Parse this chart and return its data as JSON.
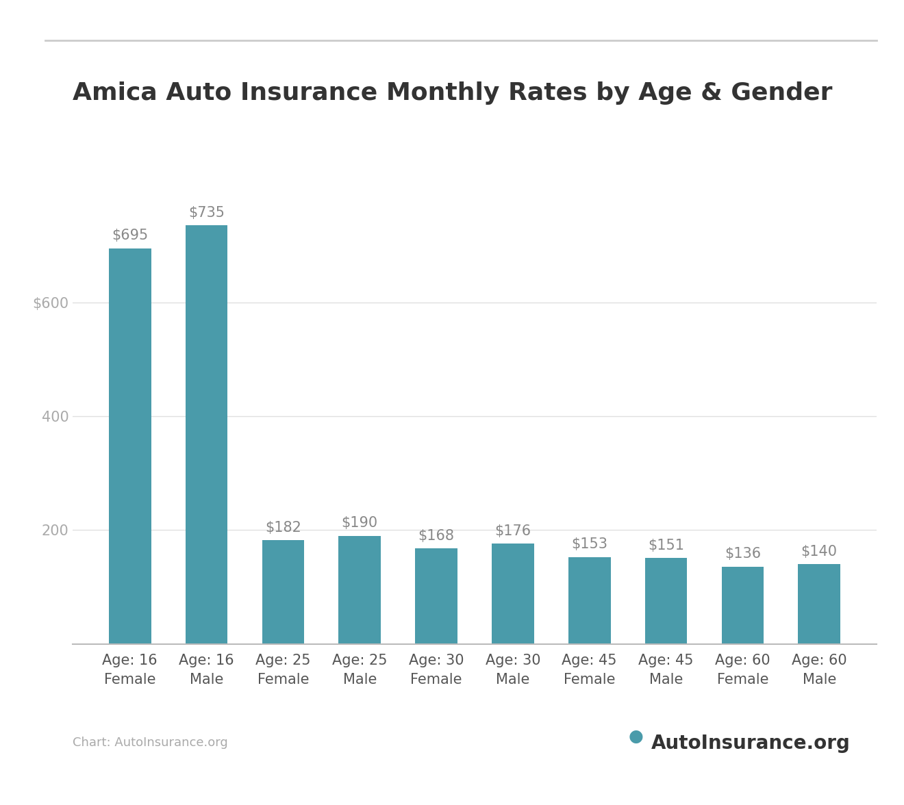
{
  "title": "Amica Auto Insurance Monthly Rates by Age & Gender",
  "categories": [
    "Age: 16\nFemale",
    "Age: 16\nMale",
    "Age: 25\nFemale",
    "Age: 25\nMale",
    "Age: 30\nFemale",
    "Age: 30\nMale",
    "Age: 45\nFemale",
    "Age: 45\nMale",
    "Age: 60\nFemale",
    "Age: 60\nMale"
  ],
  "values": [
    695,
    735,
    182,
    190,
    168,
    176,
    153,
    151,
    136,
    140
  ],
  "bar_color": "#4A9BAA",
  "bar_labels": [
    "$695",
    "$735",
    "$182",
    "$190",
    "$168",
    "$176",
    "$153",
    "$151",
    "$136",
    "$140"
  ],
  "yticks": [
    200,
    400,
    600
  ],
  "ytick_labels": [
    "200",
    "400",
    "$600"
  ],
  "ylim": [
    0,
    820
  ],
  "background_color": "#ffffff",
  "title_fontsize": 26,
  "title_color": "#333333",
  "bar_label_fontsize": 15,
  "bar_label_color": "#888888",
  "tick_label_color": "#aaaaaa",
  "tick_label_fontsize": 15,
  "xtick_label_fontsize": 15,
  "xtick_label_color": "#555555",
  "grid_color": "#e0e0e0",
  "source_text": "Chart: AutoInsurance.org",
  "source_color": "#aaaaaa",
  "source_fontsize": 13,
  "top_line_color": "#cccccc",
  "logo_text": "AutoInsurance.org",
  "logo_color": "#333333",
  "logo_fontsize": 20,
  "bar_width": 0.55
}
